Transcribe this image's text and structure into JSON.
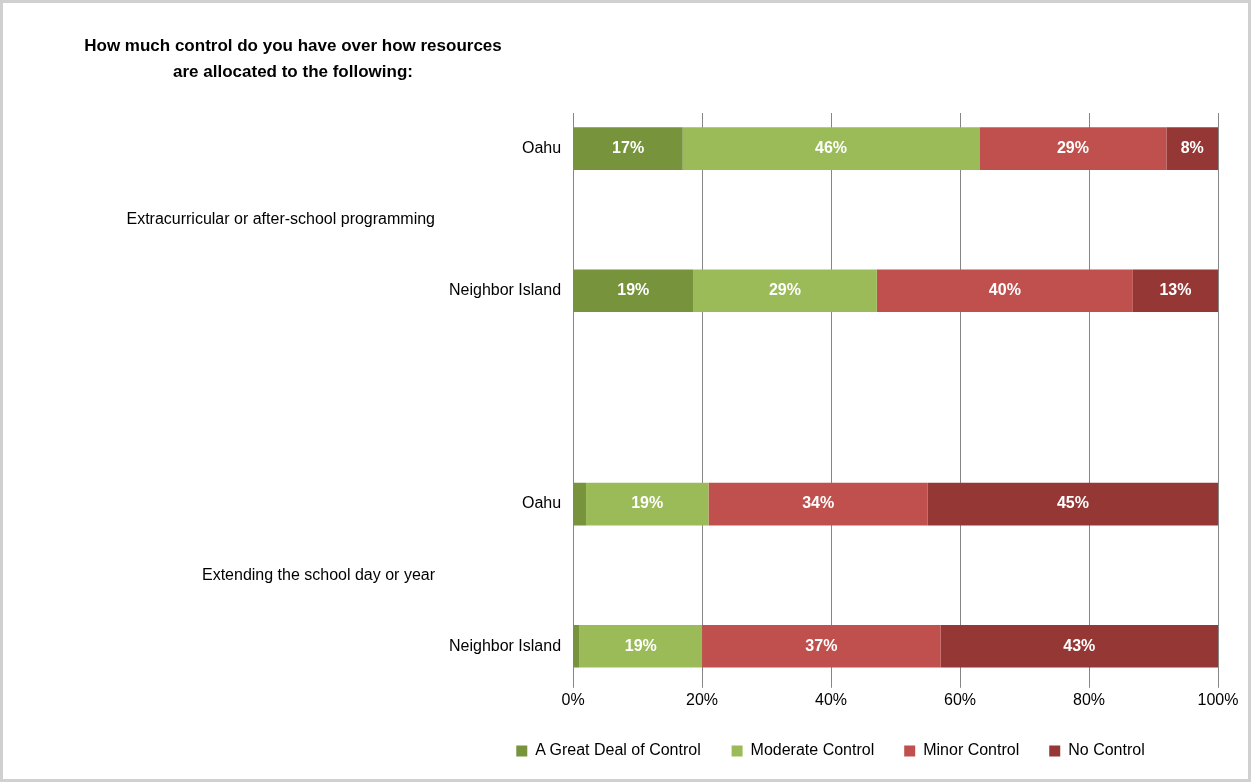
{
  "chart_data": {
    "type": "bar",
    "orientation": "horizontal",
    "stacked": true,
    "title": "How much control do you have over how resources are allocated to the following:",
    "categories": [
      "Oahu",
      null,
      "Neighbor Island",
      null,
      null,
      "Oahu",
      null,
      "Neighbor Island"
    ],
    "annotations": [
      "Extracurricular or after-school programming",
      "Extending the school day or year"
    ],
    "series": [
      {
        "name": "A Great Deal of Control",
        "color": "#77933c",
        "values": [
          17,
          null,
          18.6,
          null,
          null,
          2,
          null,
          1
        ],
        "value_labels": [
          "17%",
          null,
          "19%",
          null,
          null,
          null,
          null,
          null
        ]
      },
      {
        "name": "Moderate Control",
        "color": "#9bbb59",
        "values": [
          46,
          null,
          28.5,
          null,
          null,
          19,
          null,
          19
        ],
        "value_labels": [
          "46%",
          null,
          "29%",
          null,
          null,
          "19%",
          null,
          "19%"
        ]
      },
      {
        "name": "Minor Control",
        "color": "#c0504d",
        "values": [
          29,
          null,
          39.7,
          null,
          null,
          34,
          null,
          37
        ],
        "value_labels": [
          "29%",
          null,
          "40%",
          null,
          null,
          "34%",
          null,
          "37%"
        ]
      },
      {
        "name": "No Control",
        "color": "#953735",
        "values": [
          8,
          null,
          13.2,
          null,
          null,
          45,
          null,
          43
        ],
        "value_labels": [
          "8%",
          null,
          "13%",
          null,
          null,
          "45%",
          null,
          "43%"
        ]
      }
    ],
    "xlim": [
      0,
      100
    ],
    "xticks": [
      {
        "value": 0,
        "label": "0%"
      },
      {
        "value": 20,
        "label": "20%"
      },
      {
        "value": 40,
        "label": "40%"
      },
      {
        "value": 60,
        "label": "60%"
      },
      {
        "value": 80,
        "label": "80%"
      },
      {
        "value": 100,
        "label": "100%"
      }
    ],
    "grid": "x",
    "legend": "bottom"
  }
}
